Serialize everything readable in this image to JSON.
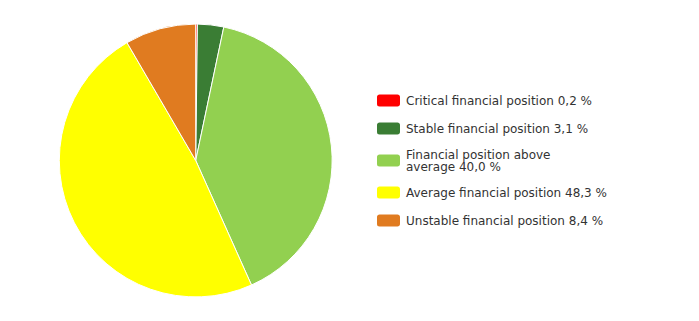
{
  "chart_data": {
    "type": "pie",
    "categories": [
      "Critical financial position 0,2 %",
      "Stable financial position 3,1 %",
      "Financial position above\naverage 40,0 %",
      "Average financial position 48,3 %",
      "Unstable financial position 8,4 %"
    ],
    "values": [
      0.2,
      3.1,
      40.0,
      48.3,
      8.4
    ],
    "colors": [
      "#FF0000",
      "#3A7D34",
      "#92D050",
      "#FFFF00",
      "#E07B20"
    ],
    "legend": "right"
  }
}
